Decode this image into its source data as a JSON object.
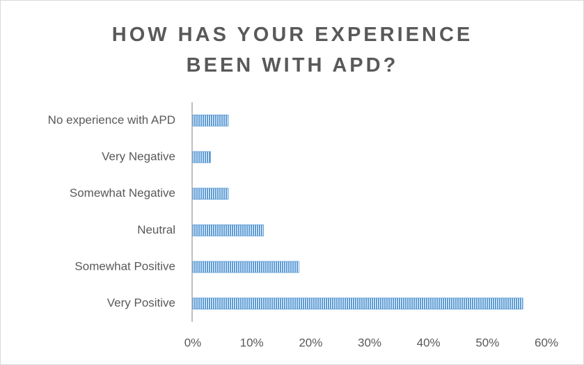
{
  "chart_data": {
    "type": "hbar",
    "title": "HOW HAS YOUR EXPERIENCE BEEN WITH APD?",
    "categories": [
      "No experience with APD",
      "Very Negative",
      "Somewhat Negative",
      "Neutral",
      "Somewhat Positive",
      "Very Positive"
    ],
    "values": [
      6,
      3,
      6,
      12,
      18,
      56
    ],
    "color": "#5b9bd5",
    "xlim": [
      0,
      60
    ],
    "xticks": [
      {
        "value": 0,
        "label": "0%"
      },
      {
        "value": 10,
        "label": "10%"
      },
      {
        "value": 20,
        "label": "20%"
      },
      {
        "value": 30,
        "label": "30%"
      },
      {
        "value": 40,
        "label": "40%"
      },
      {
        "value": 50,
        "label": "50%"
      },
      {
        "value": 60,
        "label": "60%"
      }
    ],
    "grid": false
  }
}
